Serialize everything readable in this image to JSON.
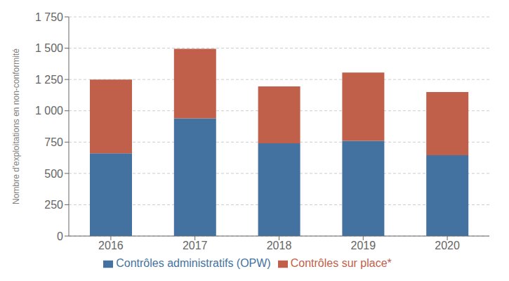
{
  "chart_data": {
    "type": "bar",
    "stacked": true,
    "categories": [
      "2016",
      "2017",
      "2018",
      "2019",
      "2020"
    ],
    "series": [
      {
        "name": "Contrôles administratifs (OPW)",
        "color": "#4472a0",
        "values": [
          660,
          940,
          740,
          760,
          645
        ]
      },
      {
        "name": "Contrôles sur place*",
        "color": "#c0604a",
        "values": [
          590,
          555,
          455,
          545,
          505
        ]
      }
    ],
    "ylabel": "Nombre d'exploitations en non-conformité",
    "ylim": [
      0,
      1750
    ],
    "yticks": [
      0,
      250,
      500,
      750,
      {
        "value": 1000,
        "label": "1 000"
      },
      {
        "value": 1250,
        "label": "1 250"
      },
      {
        "value": 1500,
        "label": "1 500"
      },
      {
        "value": 1750,
        "label": "1 750"
      }
    ],
    "grid": true,
    "legend": "bottom"
  }
}
